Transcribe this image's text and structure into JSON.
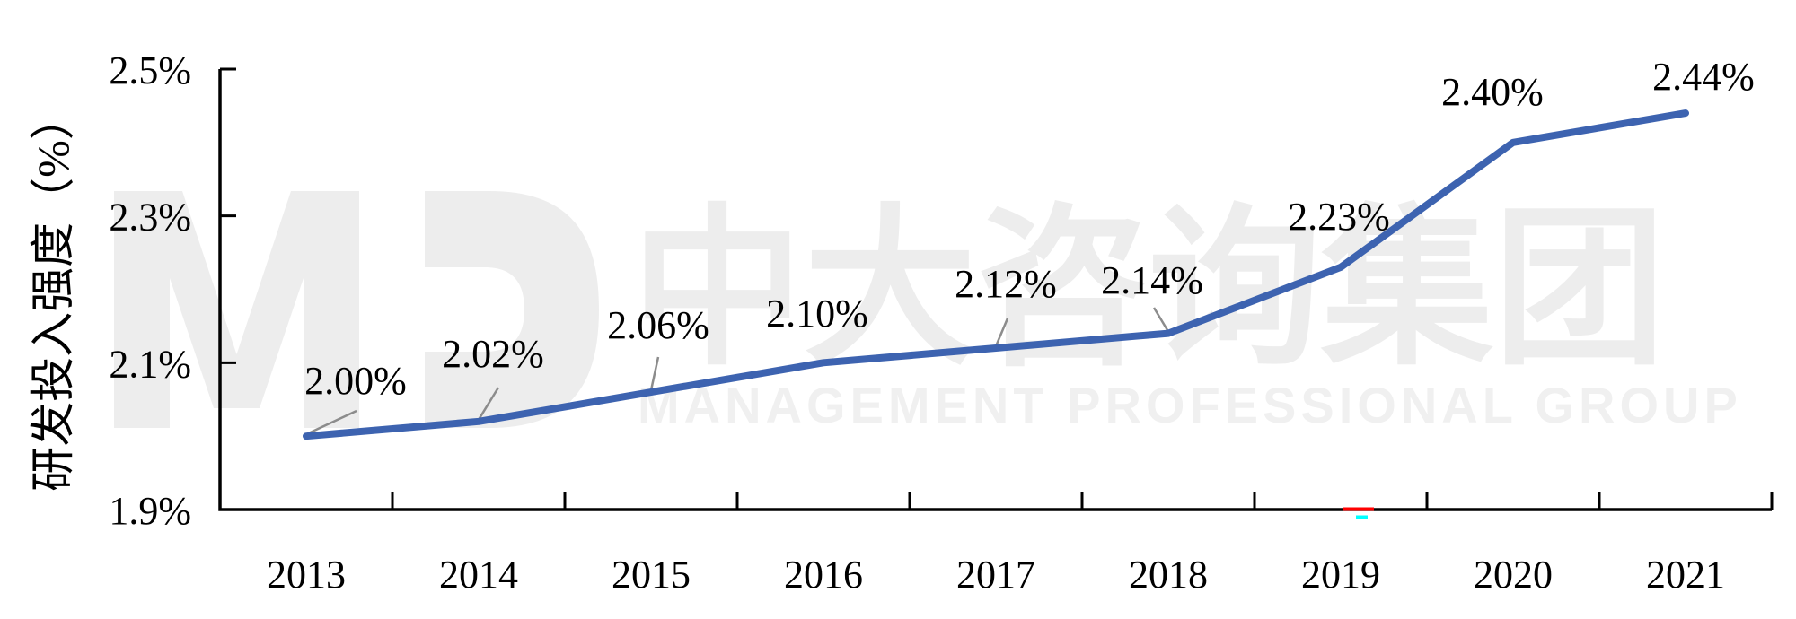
{
  "watermark": {
    "logo_name": "MP-monogram",
    "cn_text": "中大咨询集团",
    "en_text": "MANAGEMENT PROFESSIONAL GROUP",
    "color": "#ededed"
  },
  "chart_data": {
    "type": "line",
    "title": "",
    "categories": [
      "2013",
      "2014",
      "2015",
      "2016",
      "2017",
      "2018",
      "2019",
      "2020",
      "2021"
    ],
    "values": [
      2.0,
      2.02,
      2.06,
      2.1,
      2.12,
      2.14,
      2.23,
      2.4,
      2.44
    ],
    "data_labels": [
      "2.00%",
      "2.02%",
      "2.06%",
      "2.10%",
      "2.12%",
      "2.14%",
      "2.23%",
      "2.40%",
      "2.44%"
    ],
    "xlabel": "",
    "ylabel": "研发投入强度（%）",
    "ylim": [
      1.9,
      2.5
    ],
    "ytick_step": 0.2,
    "yticks": [
      {
        "v": 2.5,
        "label": "2.5%"
      },
      {
        "v": 2.3,
        "label": "2.3%"
      },
      {
        "v": 2.1,
        "label": "2.1%"
      },
      {
        "v": 1.9,
        "label": "1.9%"
      }
    ],
    "grid": false,
    "legend": "none",
    "line_color": "#3d63b0",
    "leader_color": "#8c8c8c",
    "axis_color": "#000000",
    "artifact_colors": {
      "red": "#ff0000",
      "cyan": "#00ffff"
    }
  }
}
